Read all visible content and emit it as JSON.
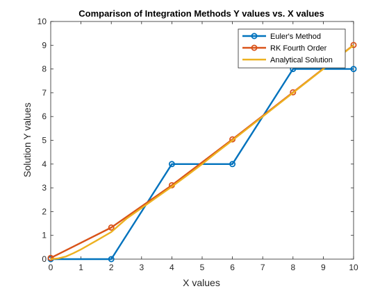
{
  "chart_data": {
    "type": "line",
    "title": "Comparison of Integration Methods Y values vs. X values",
    "xlabel": "X values",
    "ylabel": "Solution Y values",
    "xlim": [
      0,
      10
    ],
    "ylim": [
      0,
      10
    ],
    "xticks": [
      "0",
      "1",
      "2",
      "3",
      "4",
      "5",
      "6",
      "7",
      "8",
      "9",
      "10"
    ],
    "yticks": [
      "0",
      "1",
      "2",
      "3",
      "4",
      "5",
      "6",
      "7",
      "8",
      "9",
      "10"
    ],
    "grid": false,
    "legend_position": "top-right",
    "series": [
      {
        "name": "Euler's Method",
        "color": "#0072BD",
        "marker": "circle",
        "x": [
          0,
          2,
          4,
          6,
          8,
          10
        ],
        "y": [
          0,
          0,
          4,
          4,
          8,
          8
        ]
      },
      {
        "name": "RK Fourth Order",
        "color": "#D95319",
        "marker": "circle",
        "x": [
          0,
          2,
          4,
          6,
          8,
          10
        ],
        "y": [
          0.05,
          1.33,
          3.11,
          5.04,
          7.02,
          9.01
        ]
      },
      {
        "name": "Analytical Solution",
        "color": "#EDB120",
        "marker": "none",
        "x": [
          0,
          0.25,
          0.5,
          0.75,
          1,
          1.5,
          2,
          2.5,
          3,
          3.5,
          4,
          4.5,
          5,
          5.5,
          6,
          6.5,
          7,
          7.5,
          8,
          8.5,
          9,
          9.5,
          10
        ],
        "y": [
          0,
          0.03,
          0.11,
          0.25,
          0.41,
          0.77,
          1.14,
          1.7,
          2.15,
          2.6,
          3.05,
          3.52,
          4.0,
          4.51,
          5.0,
          5.5,
          6.0,
          6.5,
          7.0,
          7.5,
          8.0,
          8.5,
          9.0
        ]
      }
    ]
  }
}
